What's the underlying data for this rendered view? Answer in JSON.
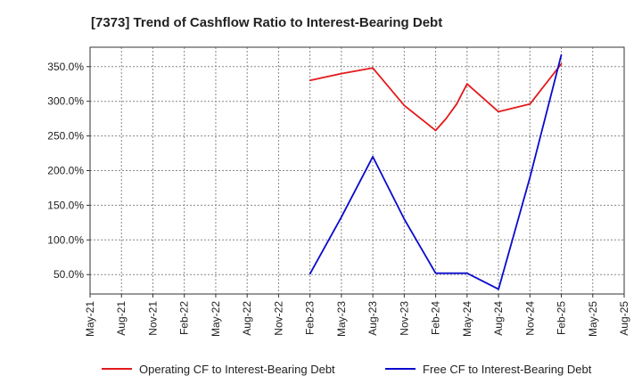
{
  "chart_data": {
    "type": "line",
    "title": "[7373]  Trend of Cashflow Ratio to Interest-Bearing Debt",
    "xlabel": "",
    "ylabel": "",
    "x_ticks": [
      "May-21",
      "Aug-21",
      "Nov-21",
      "Feb-22",
      "May-22",
      "Aug-22",
      "Nov-22",
      "Feb-23",
      "May-23",
      "Aug-23",
      "Nov-23",
      "Feb-24",
      "May-24",
      "Aug-24",
      "Nov-24",
      "Feb-25",
      "May-25",
      "Aug-25"
    ],
    "y_ticks": [
      50,
      100,
      150,
      200,
      250,
      300,
      350
    ],
    "y_tick_labels": [
      "50.0%",
      "100.0%",
      "150.0%",
      "200.0%",
      "250.0%",
      "300.0%",
      "350.0%"
    ],
    "ylim": [
      22,
      378
    ],
    "grid": true,
    "legend_position": "bottom",
    "series": [
      {
        "name": "Operating CF to Interest-Bearing Debt",
        "color": "#e31a1c",
        "points": [
          {
            "x": "Feb-23",
            "value": 330
          },
          {
            "x": "May-23",
            "value": 340
          },
          {
            "x": "Aug-23",
            "value": 348
          },
          {
            "x": "Nov-23",
            "value": 294
          },
          {
            "x": "Feb-24",
            "value": 258
          },
          {
            "x": "Mar-24",
            "value": 275
          },
          {
            "x": "Apr-24",
            "value": 296
          },
          {
            "x": "May-24",
            "value": 325
          },
          {
            "x": "Aug-24",
            "value": 285
          },
          {
            "x": "Nov-24",
            "value": 296
          },
          {
            "x": "Feb-25",
            "value": 354
          }
        ]
      },
      {
        "name": "Free CF to Interest-Bearing Debt",
        "color": "#0a0acc",
        "points": [
          {
            "x": "Feb-23",
            "value": 51
          },
          {
            "x": "May-23",
            "value": 133
          },
          {
            "x": "Aug-23",
            "value": 220
          },
          {
            "x": "Nov-23",
            "value": 130
          },
          {
            "x": "Feb-24",
            "value": 52
          },
          {
            "x": "May-24",
            "value": 52
          },
          {
            "x": "Aug-24",
            "value": 29
          },
          {
            "x": "Nov-24",
            "value": 190
          },
          {
            "x": "Feb-25",
            "value": 367
          }
        ]
      }
    ]
  }
}
